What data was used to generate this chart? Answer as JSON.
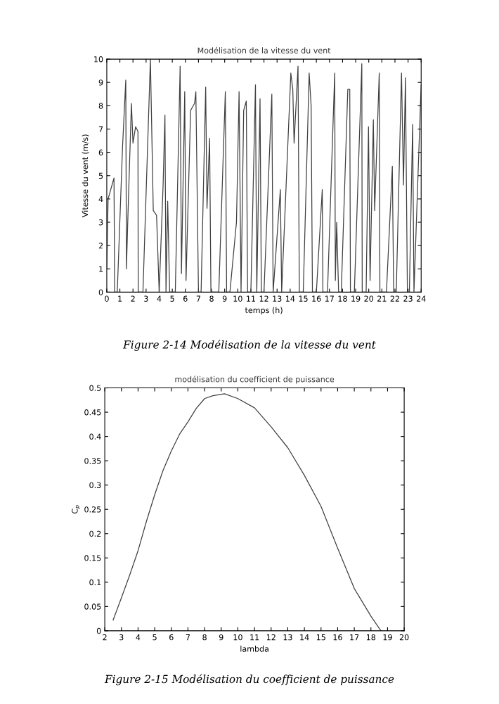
{
  "chart_data": [
    {
      "type": "line",
      "title": "Modélisation de la vitesse du vent",
      "xlabel": "temps (h)",
      "ylabel": "Vitesse du vent (m/s)",
      "annotations": [
        "Figure 2-14 Modélisation de la vitesse du vent"
      ],
      "xlim": [
        0,
        24
      ],
      "ylim": [
        0,
        10
      ],
      "xticks": [
        0,
        1,
        2,
        3,
        4,
        5,
        6,
        7,
        8,
        9,
        10,
        11,
        12,
        13,
        14,
        15,
        16,
        17,
        18,
        19,
        20,
        21,
        22,
        23,
        24
      ],
      "yticks": [
        0,
        1,
        2,
        3,
        4,
        5,
        6,
        7,
        8,
        9,
        10
      ],
      "grid": false,
      "legend": false,
      "series": [
        {
          "color": "#404040",
          "x": [
            0,
            0.1,
            0.55,
            0.6,
            0.8,
            1.2,
            1.45,
            1.5,
            1.6,
            1.88,
            2.0,
            2.2,
            2.38,
            2.4,
            2.76,
            3.33,
            3.55,
            3.8,
            4.0,
            4.3,
            4.44,
            4.52,
            4.65,
            4.8,
            5.23,
            5.6,
            5.7,
            5.95,
            6.05,
            6.4,
            6.7,
            6.8,
            7.0,
            7.2,
            7.55,
            7.65,
            7.85,
            7.95,
            8.55,
            9.05,
            9.15,
            9.4,
            9.9,
            10.1,
            10.25,
            10.45,
            10.65,
            10.75,
            11.0,
            11.35,
            11.45,
            11.7,
            11.8,
            12.0,
            12.6,
            12.7,
            13.25,
            13.35,
            14.05,
            14.2,
            14.3,
            14.6,
            14.7,
            15.0,
            15.45,
            15.6,
            15.7,
            16.0,
            16.45,
            16.5,
            16.85,
            17.4,
            17.45,
            17.55,
            17.7,
            17.9,
            18.4,
            18.55,
            18.6,
            18.9,
            19.47,
            19.5,
            19.8,
            19.98,
            20.1,
            20.35,
            20.45,
            20.8,
            20.85,
            21.35,
            21.8,
            21.9,
            22.1,
            22.5,
            22.65,
            22.8,
            22.95,
            23.1,
            23.35,
            23.45,
            24.0
          ],
          "values": [
            1,
            4,
            4.9,
            0,
            0,
            6.2,
            9.1,
            1,
            3,
            8.1,
            6.4,
            7.1,
            6.9,
            0,
            0,
            10,
            3.5,
            3.3,
            0,
            4.6,
            7.6,
            0,
            3.9,
            0,
            0,
            9.7,
            0.8,
            8.6,
            0.5,
            7.8,
            8.1,
            8.6,
            0,
            0,
            8.8,
            3.6,
            6.6,
            0,
            0,
            8.6,
            0,
            0,
            3.0,
            8.6,
            0,
            7.8,
            8.2,
            0,
            0,
            8.9,
            0,
            8.3,
            0,
            0,
            8.5,
            0,
            4.4,
            0,
            9.4,
            8.7,
            6.4,
            9.7,
            0,
            0,
            9.4,
            8.0,
            0,
            0,
            4.4,
            0,
            0,
            9.4,
            0.5,
            3.0,
            0,
            0,
            8.7,
            8.7,
            0,
            0,
            9.8,
            0,
            0,
            7.1,
            0.5,
            7.4,
            3.5,
            9.4,
            0,
            0,
            5.4,
            0,
            0,
            9.4,
            4.6,
            9.2,
            0,
            0,
            7.2,
            0,
            8.9
          ]
        }
      ]
    },
    {
      "type": "line",
      "title": "modélisation du coefficient de puissance",
      "xlabel": "lambda",
      "ylabel": "C$_{p}$",
      "annotations": [
        "Figure 2-15 Modélisation du coefficient de puissance"
      ],
      "xlim": [
        2,
        20
      ],
      "ylim": [
        0,
        0.5
      ],
      "xticks": [
        2,
        3,
        4,
        5,
        6,
        7,
        8,
        9,
        10,
        11,
        12,
        13,
        14,
        15,
        16,
        17,
        18,
        19,
        20
      ],
      "yticks": [
        0,
        0.05,
        0.1,
        0.15,
        0.2,
        0.25,
        0.3,
        0.35,
        0.4,
        0.45,
        0.5
      ],
      "grid": false,
      "legend": false,
      "series": [
        {
          "color": "#404040",
          "x": [
            2.5,
            3,
            3.5,
            4,
            4.5,
            5,
            5.5,
            6,
            6.5,
            7,
            7.5,
            8,
            8.5,
            9.2,
            10,
            11,
            12,
            13,
            14,
            15,
            16,
            17,
            18,
            18.6
          ],
          "values": [
            0.022,
            0.068,
            0.115,
            0.165,
            0.225,
            0.28,
            0.33,
            0.37,
            0.405,
            0.43,
            0.458,
            0.478,
            0.484,
            0.488,
            0.478,
            0.459,
            0.42,
            0.377,
            0.32,
            0.256,
            0.17,
            0.087,
            0.03,
            0
          ]
        }
      ]
    }
  ]
}
